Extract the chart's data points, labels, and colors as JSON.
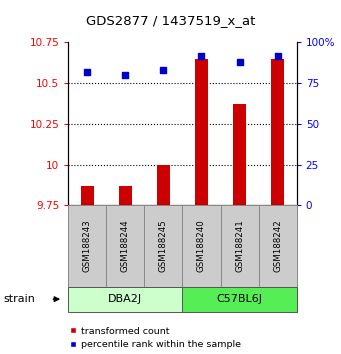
{
  "title": "GDS2877 / 1437519_x_at",
  "samples": [
    "GSM188243",
    "GSM188244",
    "GSM188245",
    "GSM188240",
    "GSM188241",
    "GSM188242"
  ],
  "red_values": [
    9.87,
    9.87,
    10.0,
    10.65,
    10.375,
    10.65
  ],
  "blue_values": [
    82,
    80,
    83,
    92,
    88,
    92
  ],
  "ylim_left": [
    9.75,
    10.75
  ],
  "ylim_right": [
    0,
    100
  ],
  "yticks_left": [
    9.75,
    10.0,
    10.25,
    10.5,
    10.75
  ],
  "ytick_labels_left": [
    "9.75",
    "10",
    "10.25",
    "10.5",
    "10.75"
  ],
  "yticks_right": [
    0,
    25,
    50,
    75,
    100
  ],
  "ytick_labels_right": [
    "0",
    "25",
    "50",
    "75",
    "100%"
  ],
  "groups": [
    {
      "label": "DBA2J",
      "indices": [
        0,
        1,
        2
      ],
      "color": "#ccffcc"
    },
    {
      "label": "C57BL6J",
      "indices": [
        3,
        4,
        5
      ],
      "color": "#55ee55"
    }
  ],
  "strain_label": "strain",
  "bar_color": "#cc0000",
  "dot_color": "#0000cc",
  "bar_bottom": 9.75,
  "legend_items": [
    {
      "color": "#cc0000",
      "label": "transformed count"
    },
    {
      "color": "#0000cc",
      "label": "percentile rank within the sample"
    }
  ],
  "sample_area_color": "#cccccc",
  "sample_area_border": "#888888",
  "grid_ticks": [
    10.0,
    10.25,
    10.5
  ]
}
